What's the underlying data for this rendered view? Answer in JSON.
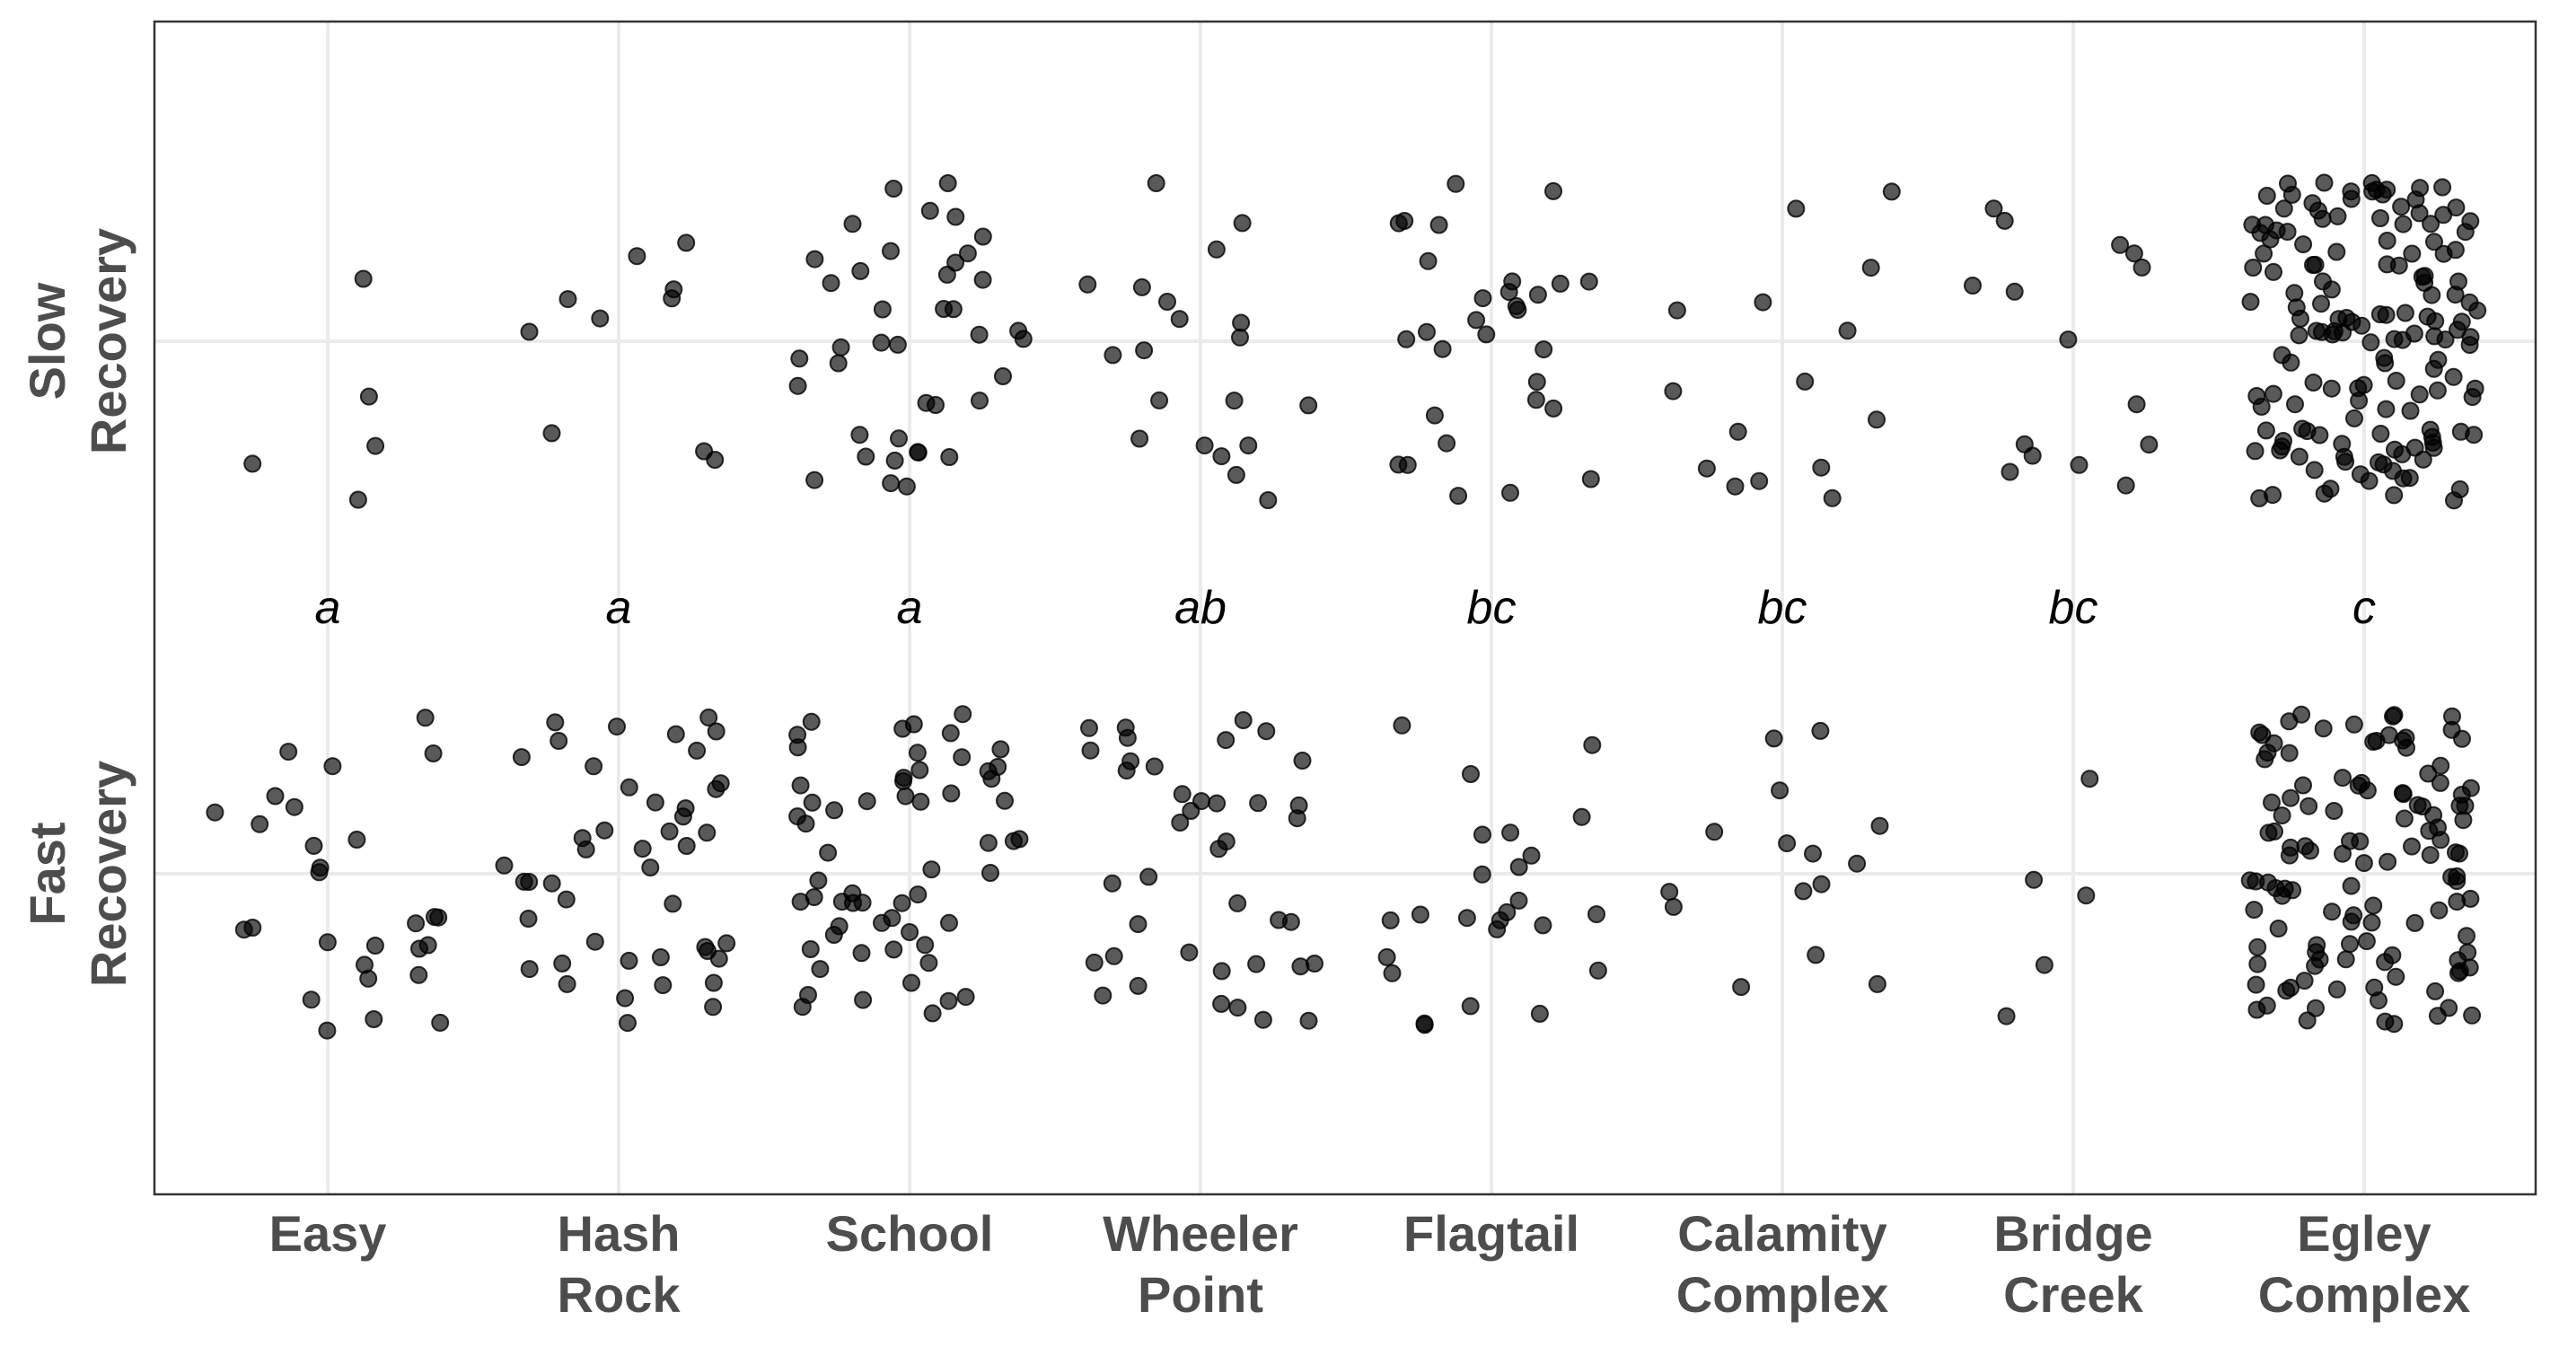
{
  "chart_data": {
    "type": "scatter",
    "title": "",
    "xlabel": "",
    "ylabel": "",
    "grid": true,
    "legend": "none",
    "point_color": "#000000",
    "categories": [
      "Easy",
      "Hash Rock",
      "School",
      "Wheeler Point",
      "Flagtail",
      "Calamity Complex",
      "Bridge Creek",
      "Egley Complex"
    ],
    "category_lines": [
      [
        "Easy"
      ],
      [
        "Hash",
        "Rock"
      ],
      [
        "School"
      ],
      [
        "Wheeler",
        "Point"
      ],
      [
        "Flagtail"
      ],
      [
        "Calamity",
        "Complex"
      ],
      [
        "Bridge",
        "Creek"
      ],
      [
        "Egley",
        "Complex"
      ]
    ],
    "y_levels": [
      "Fast Recovery",
      "Slow Recovery"
    ],
    "y_level_lines": [
      [
        "Fast",
        "Recovery"
      ],
      [
        "Slow",
        "Recovery"
      ]
    ],
    "group_letters": [
      "a",
      "a",
      "a",
      "ab",
      "bc",
      "bc",
      "bc",
      "c"
    ],
    "series": [
      {
        "level": "Slow Recovery",
        "counts": [
          5,
          10,
          40,
          20,
          30,
          15,
          15,
          150
        ]
      },
      {
        "level": "Fast Recovery",
        "counts": [
          28,
          45,
          60,
          40,
          25,
          15,
          5,
          120
        ]
      }
    ]
  }
}
